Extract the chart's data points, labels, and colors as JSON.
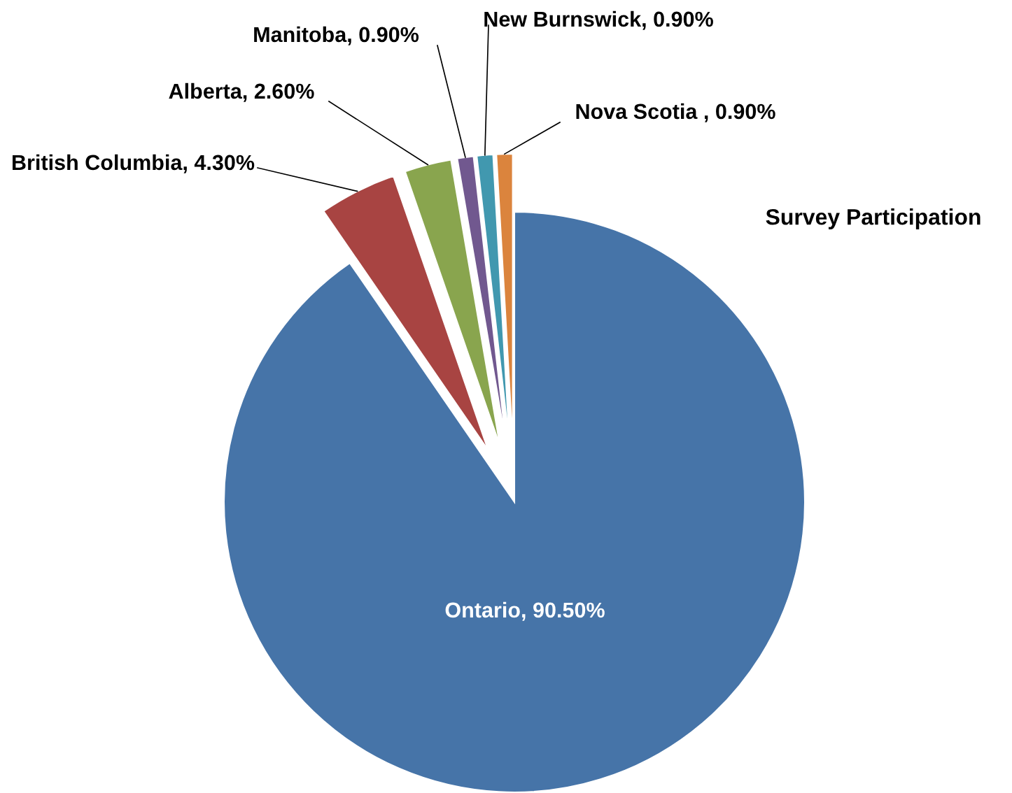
{
  "chart_data": {
    "type": "pie",
    "title": "Survey Participation",
    "categories": [
      "Ontario",
      "British Columbia",
      "Alberta",
      "Manitoba",
      "New Burnswick",
      "Nova Scotia"
    ],
    "values": [
      90.5,
      4.3,
      2.6,
      0.9,
      0.9,
      0.9
    ],
    "colors": [
      "#4674a8",
      "#a84442",
      "#89a54e",
      "#71588f",
      "#4198af",
      "#db843d"
    ],
    "value_labels": [
      "90.50%",
      "4.30%",
      "2.60%",
      "0.90%",
      "0.90%",
      "0.90%"
    ]
  }
}
